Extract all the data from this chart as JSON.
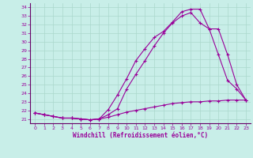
{
  "xlabel": "Windchill (Refroidissement éolien,°C)",
  "bg_color": "#c8eee8",
  "grid_color": "#aad8cc",
  "line_color": "#990099",
  "spine_color": "#660066",
  "xlim": [
    -0.5,
    23.5
  ],
  "ylim": [
    20.5,
    34.5
  ],
  "yticks": [
    21,
    22,
    23,
    24,
    25,
    26,
    27,
    28,
    29,
    30,
    31,
    32,
    33,
    34
  ],
  "xticks": [
    0,
    1,
    2,
    3,
    4,
    5,
    6,
    7,
    8,
    9,
    10,
    11,
    12,
    13,
    14,
    15,
    16,
    17,
    18,
    19,
    20,
    21,
    22,
    23
  ],
  "series1_x": [
    0,
    1,
    2,
    3,
    4,
    5,
    6,
    7,
    8,
    9,
    10,
    11,
    12,
    13,
    14,
    15,
    16,
    17,
    18,
    19,
    20,
    21,
    22,
    23
  ],
  "series1_y": [
    21.7,
    21.5,
    21.3,
    21.1,
    21.1,
    21.0,
    20.9,
    21.0,
    21.2,
    21.5,
    21.8,
    22.0,
    22.2,
    22.4,
    22.6,
    22.8,
    22.9,
    23.0,
    23.0,
    23.1,
    23.1,
    23.2,
    23.2,
    23.2
  ],
  "series2_x": [
    0,
    1,
    2,
    3,
    4,
    5,
    6,
    7,
    8,
    9,
    10,
    11,
    12,
    13,
    14,
    15,
    16,
    17,
    18,
    19,
    20,
    21,
    22,
    23
  ],
  "series2_y": [
    21.7,
    21.5,
    21.3,
    21.1,
    21.1,
    21.0,
    20.9,
    21.0,
    22.1,
    23.8,
    25.7,
    27.8,
    29.2,
    30.5,
    31.2,
    32.3,
    33.5,
    33.8,
    33.8,
    31.5,
    28.5,
    25.5,
    24.5,
    23.2
  ],
  "series3_x": [
    0,
    1,
    2,
    3,
    4,
    5,
    6,
    7,
    8,
    9,
    10,
    11,
    12,
    13,
    14,
    15,
    16,
    17,
    18,
    19,
    20,
    21,
    22,
    23
  ],
  "series3_y": [
    21.7,
    21.5,
    21.3,
    21.1,
    21.1,
    21.0,
    20.9,
    21.0,
    21.5,
    22.2,
    24.5,
    26.2,
    27.8,
    29.5,
    31.0,
    32.2,
    33.0,
    33.4,
    32.2,
    31.5,
    31.5,
    28.5,
    25.0,
    23.2
  ]
}
